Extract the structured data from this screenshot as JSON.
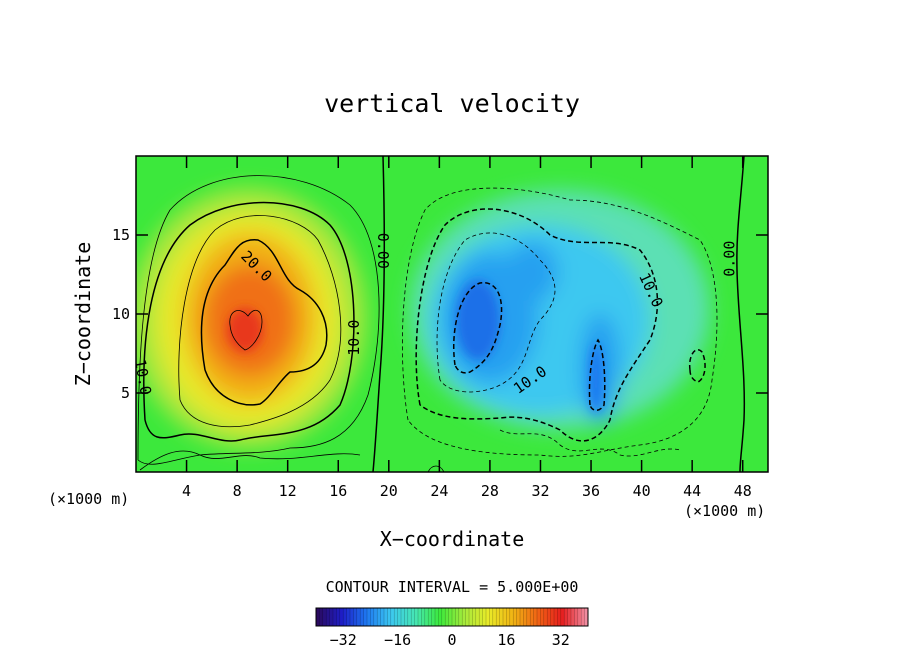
{
  "chart_data": {
    "type": "heatmap",
    "title": "vertical velocity",
    "xlabel": "X−coordinate",
    "ylabel": "Z−coordinate",
    "x_units_left": "(×1000 m)",
    "x_units_right": "(×1000 m)",
    "xlim": [
      0,
      50
    ],
    "ylim": [
      0,
      20
    ],
    "x_ticks": [
      4,
      8,
      12,
      16,
      20,
      24,
      28,
      32,
      36,
      40,
      44,
      48
    ],
    "y_ticks": [
      5,
      10,
      15
    ],
    "contour_interval_text": "CONTOUR INTERVAL = 5.000E+00",
    "contour_interval": 5.0,
    "contour_labels": [
      {
        "text": "20.0",
        "x": 9.5,
        "y": 13.0,
        "rot": 45
      },
      {
        "text": "10.0",
        "x": 17.3,
        "y": 8.5,
        "rot": -90
      },
      {
        "text": "10.0",
        "x": 0.5,
        "y": 6.0,
        "rot": 80
      },
      {
        "text": "0.00",
        "x": 19.5,
        "y": 14.0,
        "rot": 90
      },
      {
        "text": "0.00",
        "x": 47.0,
        "y": 13.5,
        "rot": -90
      },
      {
        "text": "10.0",
        "x": 40.7,
        "y": 11.5,
        "rot": 65
      },
      {
        "text": "10.0",
        "x": 31.2,
        "y": 5.8,
        "rot": -35
      }
    ],
    "colorbar": {
      "min": -40,
      "max": 40,
      "ticks": [
        -32,
        -16,
        0,
        16,
        32
      ],
      "tick_labels": [
        "−32",
        "−16",
        "0",
        "16",
        "32"
      ],
      "colormap": [
        "#2a0a60",
        "#1e1ec8",
        "#1e78f0",
        "#3cc8f0",
        "#46e6b4",
        "#3cea3c",
        "#a6ea3c",
        "#eaea28",
        "#f0b414",
        "#f06414",
        "#e61e1e",
        "#f08ca0"
      ]
    },
    "cells": [
      {
        "x": 9,
        "y": 9.5,
        "value": 30
      },
      {
        "x": 26.5,
        "y": 9.5,
        "value": -25
      },
      {
        "x": 36.5,
        "y": 7,
        "value": -18
      },
      {
        "x": 30.5,
        "y": 13,
        "value": -15
      }
    ]
  }
}
